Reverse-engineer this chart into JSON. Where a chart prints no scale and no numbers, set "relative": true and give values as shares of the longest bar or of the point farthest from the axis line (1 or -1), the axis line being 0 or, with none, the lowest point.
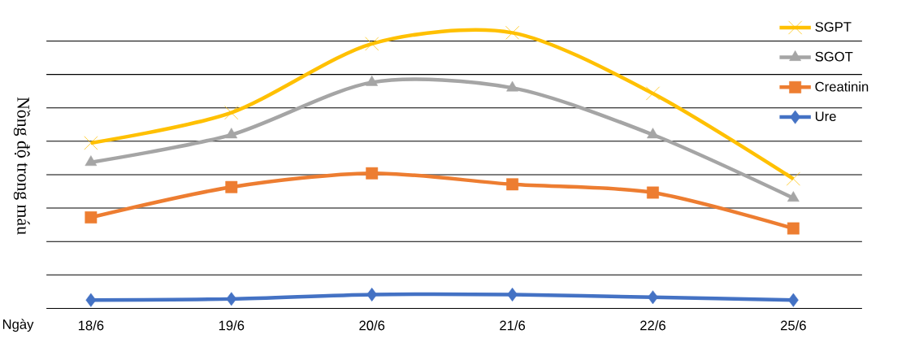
{
  "chart_data": {
    "type": "line",
    "relative": true,
    "xlabel": "Ngày",
    "ylabel": "Nồng độ trong máu",
    "categories": [
      "18/6",
      "19/6",
      "20/6",
      "21/6",
      "22/6",
      "25/6"
    ],
    "grid": "y",
    "legend": "top right",
    "line_style": "solid",
    "series": [
      {
        "name": "SGPT",
        "color": "#ffc000",
        "marker": "cross",
        "values": [
          0.6,
          0.71,
          0.96,
          1.0,
          0.78,
          0.47
        ]
      },
      {
        "name": "SGOT",
        "color": "#a5a5a5",
        "marker": "triangle",
        "values": [
          0.53,
          0.63,
          0.82,
          0.8,
          0.63,
          0.4
        ]
      },
      {
        "name": "Creatinin",
        "color": "#ed7d31",
        "marker": "square",
        "values": [
          0.33,
          0.44,
          0.49,
          0.45,
          0.42,
          0.29
        ]
      },
      {
        "name": "Ure",
        "color": "#4472c4",
        "marker": "diamond",
        "values": [
          0.03,
          0.034,
          0.05,
          0.05,
          0.04,
          0.03
        ]
      }
    ]
  }
}
